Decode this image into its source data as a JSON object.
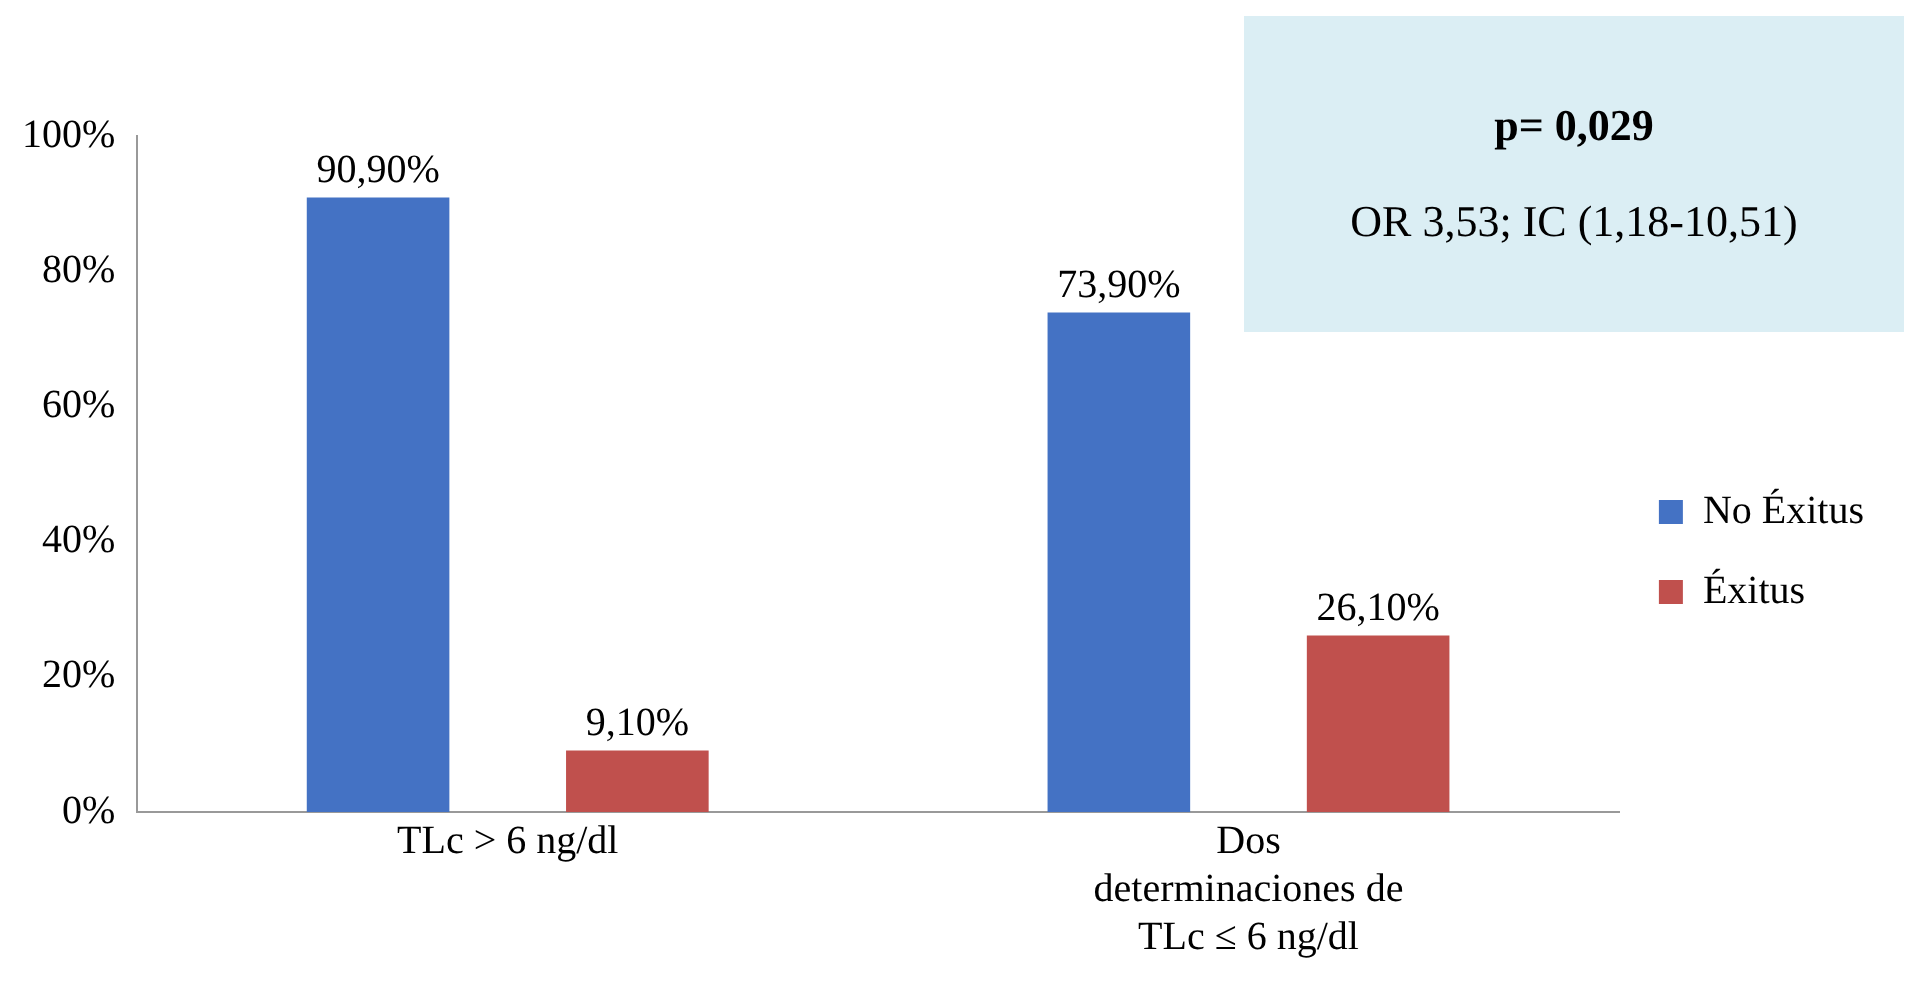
{
  "chart_data": {
    "type": "bar",
    "categories": [
      "TLc > 6 ng/dl",
      "Dos determinaciones de TLc ≤ 6 ng/dl"
    ],
    "series": [
      {
        "name": "No Éxitus",
        "color": "#4472c4",
        "values": [
          90.9,
          73.9
        ],
        "value_labels": [
          "90,90%",
          "73,90%"
        ]
      },
      {
        "name": "Éxitus",
        "color": "#c0504d",
        "values": [
          9.1,
          26.1
        ],
        "value_labels": [
          "9,10%",
          "26,10%"
        ]
      }
    ],
    "ylim": [
      0,
      100
    ],
    "yticks": [
      {
        "value": 0,
        "label": "0%"
      },
      {
        "value": 20,
        "label": "20%"
      },
      {
        "value": 40,
        "label": "40%"
      },
      {
        "value": 60,
        "label": "60%"
      },
      {
        "value": 80,
        "label": "80%"
      },
      {
        "value": 100,
        "label": "100%"
      }
    ],
    "grid": false,
    "legend": "right",
    "annotations": [
      "p= 0,029",
      "OR 3,53; IC (1,18-10,51)"
    ]
  }
}
